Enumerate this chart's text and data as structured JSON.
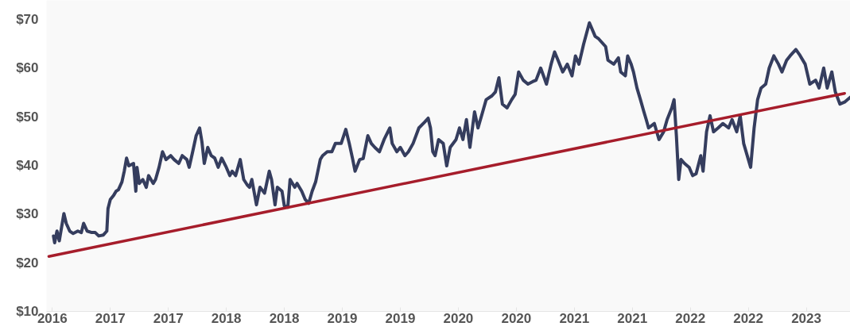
{
  "chart_data": {
    "type": "line",
    "x": [
      2016.51,
      2016.52,
      2016.54,
      2016.56,
      2016.6,
      2016.62,
      2016.65,
      2016.68,
      2016.72,
      2016.75,
      2016.77,
      2016.8,
      2016.84,
      2016.87,
      2016.9,
      2016.94,
      2016.97,
      2016.98,
      2017.0,
      2017.03,
      2017.05,
      2017.07,
      2017.1,
      2017.12,
      2017.14,
      2017.16,
      2017.2,
      2017.22,
      2017.23,
      2017.25,
      2017.28,
      2017.31,
      2017.33,
      2017.37,
      2017.39,
      2017.42,
      2017.45,
      2017.48,
      2017.52,
      2017.55,
      2017.59,
      2017.62,
      2017.66,
      2017.68,
      2017.71,
      2017.74,
      2017.77,
      2017.79,
      2017.81,
      2017.84,
      2017.87,
      2017.9,
      2017.93,
      2017.96,
      2018.0,
      2018.03,
      2018.05,
      2018.08,
      2018.12,
      2018.15,
      2018.18,
      2018.2,
      2018.22,
      2018.26,
      2018.29,
      2018.33,
      2018.37,
      2018.39,
      2018.42,
      2018.44,
      2018.48,
      2018.5,
      2018.53,
      2018.55,
      2018.59,
      2018.61,
      2018.65,
      2018.68,
      2018.71,
      2018.74,
      2018.77,
      2018.81,
      2018.83,
      2018.87,
      2018.91,
      2018.94,
      2018.99,
      2019.03,
      2019.06,
      2019.09,
      2019.11,
      2019.15,
      2019.18,
      2019.22,
      2019.25,
      2019.28,
      2019.32,
      2019.36,
      2019.41,
      2019.43,
      2019.47,
      2019.5,
      2019.54,
      2019.57,
      2019.61,
      2019.66,
      2019.71,
      2019.74,
      2019.76,
      2019.78,
      2019.8,
      2019.83,
      2019.87,
      2019.9,
      2019.93,
      2019.98,
      2020.01,
      2020.04,
      2020.07,
      2020.1,
      2020.14,
      2020.17,
      2020.21,
      2020.24,
      2020.29,
      2020.32,
      2020.35,
      2020.38,
      2020.42,
      2020.46,
      2020.49,
      2020.52,
      2020.56,
      2020.6,
      2020.64,
      2020.67,
      2020.71,
      2020.73,
      2020.76,
      2020.8,
      2020.83,
      2020.86,
      2020.9,
      2020.94,
      2020.98,
      2021.01,
      2021.04,
      2021.08,
      2021.13,
      2021.18,
      2021.21,
      2021.27,
      2021.29,
      2021.34,
      2021.38,
      2021.4,
      2021.44,
      2021.46,
      2021.49,
      2021.51,
      2021.54,
      2021.57,
      2021.6,
      2021.62,
      2021.64,
      2021.69,
      2021.73,
      2021.77,
      2021.8,
      2021.84,
      2021.86,
      2021.88,
      2021.9,
      2021.92,
      2021.95,
      2021.99,
      2022.02,
      2022.05,
      2022.09,
      2022.11,
      2022.14,
      2022.17,
      2022.2,
      2022.24,
      2022.28,
      2022.33,
      2022.36,
      2022.4,
      2022.43,
      2022.46,
      2022.52,
      2022.55,
      2022.58,
      2022.61,
      2022.65,
      2022.68,
      2022.72,
      2022.76,
      2022.79,
      2022.83,
      2022.86,
      2022.91,
      2022.94,
      2022.99,
      2023.03,
      2023.08,
      2023.11,
      2023.15,
      2023.18,
      2023.22,
      2023.25,
      2023.29,
      2023.33,
      2023.38
    ],
    "series": [
      {
        "color": "#353d5e",
        "values": [
          25.5,
          24.1,
          26.5,
          24.5,
          30.1,
          28.1,
          26.5,
          26.0,
          26.5,
          26.2,
          28.1,
          26.5,
          26.2,
          26.2,
          25.5,
          25.7,
          26.5,
          31.1,
          33.0,
          33.9,
          34.7,
          35.0,
          36.6,
          38.8,
          41.5,
          39.9,
          40.4,
          34.7,
          39.6,
          36.3,
          37.1,
          35.5,
          37.9,
          36.3,
          37.1,
          39.6,
          42.8,
          41.2,
          42.0,
          41.2,
          40.4,
          42.0,
          41.2,
          39.6,
          42.8,
          46.1,
          47.7,
          44.8,
          40.4,
          43.7,
          42.0,
          41.5,
          39.6,
          41.5,
          39.6,
          37.9,
          38.8,
          37.9,
          41.2,
          37.1,
          36.0,
          35.5,
          37.1,
          31.9,
          35.5,
          34.3,
          38.8,
          37.1,
          31.9,
          35.5,
          34.7,
          31.7,
          31.4,
          37.1,
          35.5,
          36.3,
          34.7,
          33.0,
          32.2,
          34.7,
          36.6,
          41.2,
          42.0,
          42.8,
          42.8,
          44.5,
          44.5,
          47.4,
          44.5,
          41.2,
          38.8,
          41.2,
          41.4,
          46.1,
          44.5,
          43.7,
          42.8,
          45.3,
          47.7,
          44.5,
          42.8,
          43.7,
          42.0,
          42.8,
          44.5,
          47.7,
          48.9,
          49.7,
          47.7,
          42.8,
          42.0,
          45.3,
          44.5,
          39.9,
          43.7,
          45.3,
          47.7,
          45.3,
          49.4,
          43.7,
          51.0,
          47.7,
          51.0,
          53.5,
          54.3,
          55.1,
          58.0,
          52.6,
          51.8,
          53.5,
          54.6,
          59.2,
          57.5,
          56.7,
          57.2,
          57.5,
          60.0,
          58.7,
          56.7,
          60.8,
          63.3,
          61.6,
          59.2,
          60.8,
          58.4,
          62.5,
          60.8,
          64.9,
          69.3,
          66.5,
          66.0,
          64.4,
          61.6,
          60.8,
          62.1,
          59.2,
          58.4,
          62.5,
          60.8,
          59.2,
          55.9,
          53.5,
          51.0,
          49.4,
          47.7,
          48.6,
          45.3,
          46.9,
          49.4,
          51.8,
          53.5,
          46.1,
          37.1,
          41.2,
          40.4,
          39.6,
          37.9,
          38.3,
          42.0,
          38.8,
          46.9,
          50.2,
          46.9,
          47.7,
          48.6,
          47.7,
          49.4,
          46.9,
          50.2,
          44.5,
          39.6,
          47.7,
          53.5,
          55.9,
          56.7,
          60.0,
          62.5,
          60.8,
          59.2,
          61.6,
          62.5,
          63.8,
          62.8,
          60.8,
          56.7,
          57.5,
          55.9,
          60.0,
          55.9,
          59.2,
          55.1,
          52.6,
          53.0,
          54.0
        ]
      },
      {
        "type": "line",
        "color": "#a61d2b",
        "x": [
          2016.47,
          2023.33
        ],
        "values": [
          21.3,
          54.8
        ]
      }
    ],
    "xlim": [
      2016.45,
      2023.38
    ],
    "ylim": [
      10,
      73.9
    ],
    "xticks": [
      {
        "value": 2016.5,
        "label": "2016"
      },
      {
        "value": 2017.0,
        "label": "2017"
      },
      {
        "value": 2017.5,
        "label": "2017"
      },
      {
        "value": 2018.0,
        "label": "2018"
      },
      {
        "value": 2018.5,
        "label": "2018"
      },
      {
        "value": 2019.0,
        "label": "2019"
      },
      {
        "value": 2019.5,
        "label": "2019"
      },
      {
        "value": 2020.0,
        "label": "2020"
      },
      {
        "value": 2020.5,
        "label": "2020"
      },
      {
        "value": 2021.0,
        "label": "2021"
      },
      {
        "value": 2021.5,
        "label": "2021"
      },
      {
        "value": 2022.0,
        "label": "2022"
      },
      {
        "value": 2022.5,
        "label": "2022"
      },
      {
        "value": 2023.0,
        "label": "2023"
      }
    ],
    "yticks": [
      {
        "value": 10,
        "label": "$10"
      },
      {
        "value": 20,
        "label": "$20"
      },
      {
        "value": 30,
        "label": "$30"
      },
      {
        "value": 40,
        "label": "$40"
      },
      {
        "value": 50,
        "label": "$50"
      },
      {
        "value": 60,
        "label": "$60"
      },
      {
        "value": 70,
        "label": "$70"
      }
    ]
  }
}
